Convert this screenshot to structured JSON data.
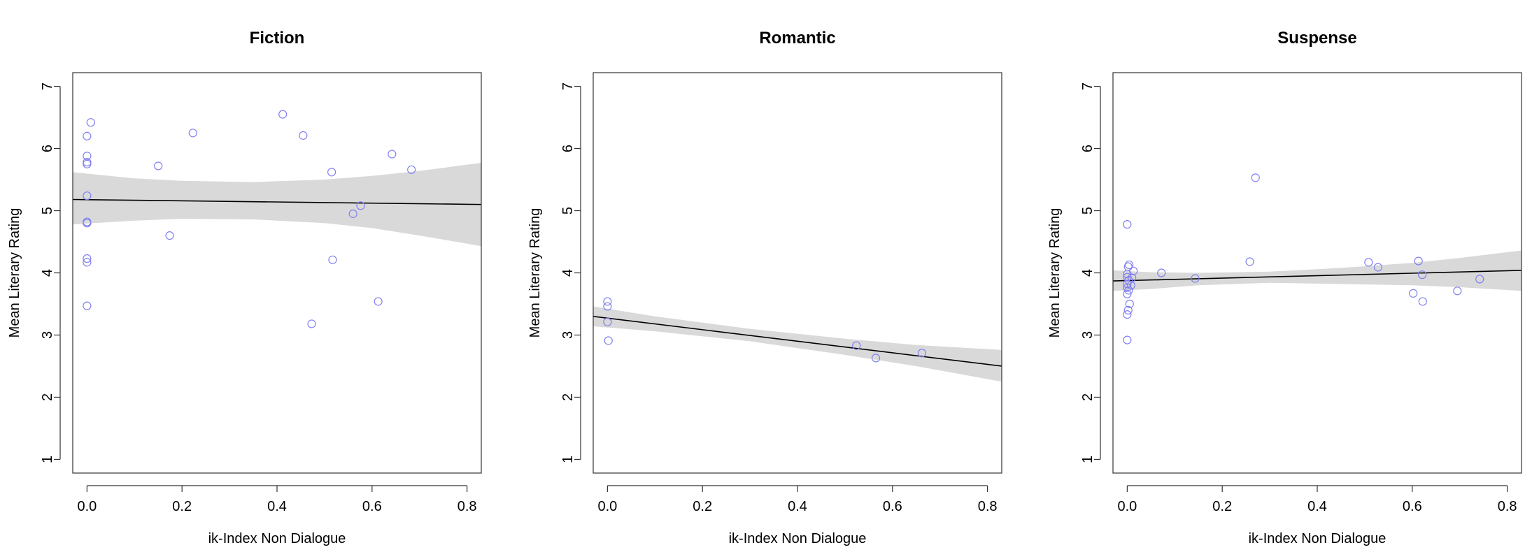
{
  "colors": {
    "points": "#8080f0",
    "fit_line": "#000000",
    "confidence_band": "#d9d9d9",
    "frame": "#333333"
  },
  "chart_data": [
    {
      "type": "scatter",
      "title": "Fiction",
      "xlabel": "ik-Index Non Dialogue",
      "ylabel": "Mean Literary Rating",
      "xlim": [
        -0.03,
        0.83
      ],
      "ylim": [
        0.78,
        7.22
      ],
      "xticks": [
        "0.0",
        "0.2",
        "0.4",
        "0.6",
        "0.8"
      ],
      "yticks": [
        "1",
        "2",
        "3",
        "4",
        "5",
        "6",
        "7"
      ],
      "grid": false,
      "points": [
        [
          0.0,
          6.2
        ],
        [
          0.0,
          5.88
        ],
        [
          0.0,
          5.78
        ],
        [
          0.0,
          5.75
        ],
        [
          0.0,
          5.24
        ],
        [
          0.0,
          4.82
        ],
        [
          0.0,
          4.8
        ],
        [
          0.0,
          4.23
        ],
        [
          0.0,
          4.17
        ],
        [
          0.0,
          3.47
        ],
        [
          0.008,
          6.42
        ],
        [
          0.15,
          5.72
        ],
        [
          0.174,
          4.6
        ],
        [
          0.223,
          6.25
        ],
        [
          0.412,
          6.55
        ],
        [
          0.455,
          6.21
        ],
        [
          0.473,
          3.18
        ],
        [
          0.515,
          5.62
        ],
        [
          0.517,
          4.21
        ],
        [
          0.56,
          4.95
        ],
        [
          0.576,
          5.08
        ],
        [
          0.613,
          3.54
        ],
        [
          0.642,
          5.91
        ],
        [
          0.683,
          5.66
        ]
      ],
      "fit": {
        "x": [
          -0.03,
          0.83
        ],
        "y": [
          5.18,
          5.1
        ]
      },
      "band": {
        "x": [
          -0.03,
          0.1,
          0.2,
          0.35,
          0.5,
          0.6,
          0.7,
          0.83
        ],
        "upper": [
          5.62,
          5.52,
          5.48,
          5.46,
          5.5,
          5.56,
          5.64,
          5.77
        ],
        "lower": [
          4.78,
          4.84,
          4.87,
          4.86,
          4.8,
          4.72,
          4.6,
          4.43
        ]
      }
    },
    {
      "type": "scatter",
      "title": "Romantic",
      "xlabel": "ik-Index Non Dialogue",
      "ylabel": "Mean Literary Rating",
      "xlim": [
        -0.03,
        0.83
      ],
      "ylim": [
        0.78,
        7.22
      ],
      "xticks": [
        "0.0",
        "0.2",
        "0.4",
        "0.6",
        "0.8"
      ],
      "yticks": [
        "1",
        "2",
        "3",
        "4",
        "5",
        "6",
        "7"
      ],
      "grid": false,
      "points": [
        [
          0.0,
          3.54
        ],
        [
          0.0,
          3.46
        ],
        [
          0.0,
          3.21
        ],
        [
          0.002,
          2.91
        ],
        [
          0.524,
          2.83
        ],
        [
          0.565,
          2.63
        ],
        [
          0.662,
          2.71
        ]
      ],
      "fit": {
        "x": [
          -0.03,
          0.83
        ],
        "y": [
          3.3,
          2.5
        ]
      },
      "band": {
        "x": [
          -0.03,
          0.1,
          0.3,
          0.5,
          0.65,
          0.83
        ],
        "upper": [
          3.46,
          3.3,
          3.1,
          2.94,
          2.84,
          2.76
        ],
        "lower": [
          3.14,
          3.06,
          2.9,
          2.68,
          2.5,
          2.25
        ]
      }
    },
    {
      "type": "scatter",
      "title": "Suspense",
      "xlabel": "ik-Index Non Dialogue",
      "ylabel": "Mean Literary Rating",
      "xlim": [
        -0.03,
        0.83
      ],
      "ylim": [
        0.78,
        7.22
      ],
      "xticks": [
        "0.0",
        "0.2",
        "0.4",
        "0.6",
        "0.8"
      ],
      "yticks": [
        "1",
        "2",
        "3",
        "4",
        "5",
        "6",
        "7"
      ],
      "grid": false,
      "points": [
        [
          0.0,
          4.78
        ],
        [
          0.004,
          4.13
        ],
        [
          0.002,
          4.1
        ],
        [
          0.0,
          3.98
        ],
        [
          0.0,
          3.93
        ],
        [
          0.003,
          3.88
        ],
        [
          0.0,
          3.82
        ],
        [
          0.0,
          3.76
        ],
        [
          0.003,
          3.72
        ],
        [
          0.0,
          3.66
        ],
        [
          0.005,
          3.5
        ],
        [
          0.002,
          3.4
        ],
        [
          0.0,
          3.33
        ],
        [
          0.0,
          2.92
        ],
        [
          0.013,
          4.03
        ],
        [
          0.01,
          3.92
        ],
        [
          0.008,
          3.8
        ],
        [
          0.072,
          4.0
        ],
        [
          0.143,
          3.91
        ],
        [
          0.258,
          4.18
        ],
        [
          0.27,
          5.53
        ],
        [
          0.508,
          4.17
        ],
        [
          0.528,
          4.09
        ],
        [
          0.602,
          3.67
        ],
        [
          0.613,
          4.19
        ],
        [
          0.621,
          3.97
        ],
        [
          0.622,
          3.54
        ],
        [
          0.695,
          3.71
        ],
        [
          0.742,
          3.9
        ]
      ],
      "fit": {
        "x": [
          -0.03,
          0.83
        ],
        "y": [
          3.87,
          4.04
        ]
      },
      "band": {
        "x": [
          -0.03,
          0.05,
          0.15,
          0.3,
          0.45,
          0.6,
          0.7,
          0.83
        ],
        "upper": [
          4.04,
          4.01,
          4.0,
          4.02,
          4.08,
          4.16,
          4.24,
          4.36
        ],
        "lower": [
          3.71,
          3.74,
          3.8,
          3.84,
          3.82,
          3.8,
          3.77,
          3.71
        ]
      }
    }
  ]
}
